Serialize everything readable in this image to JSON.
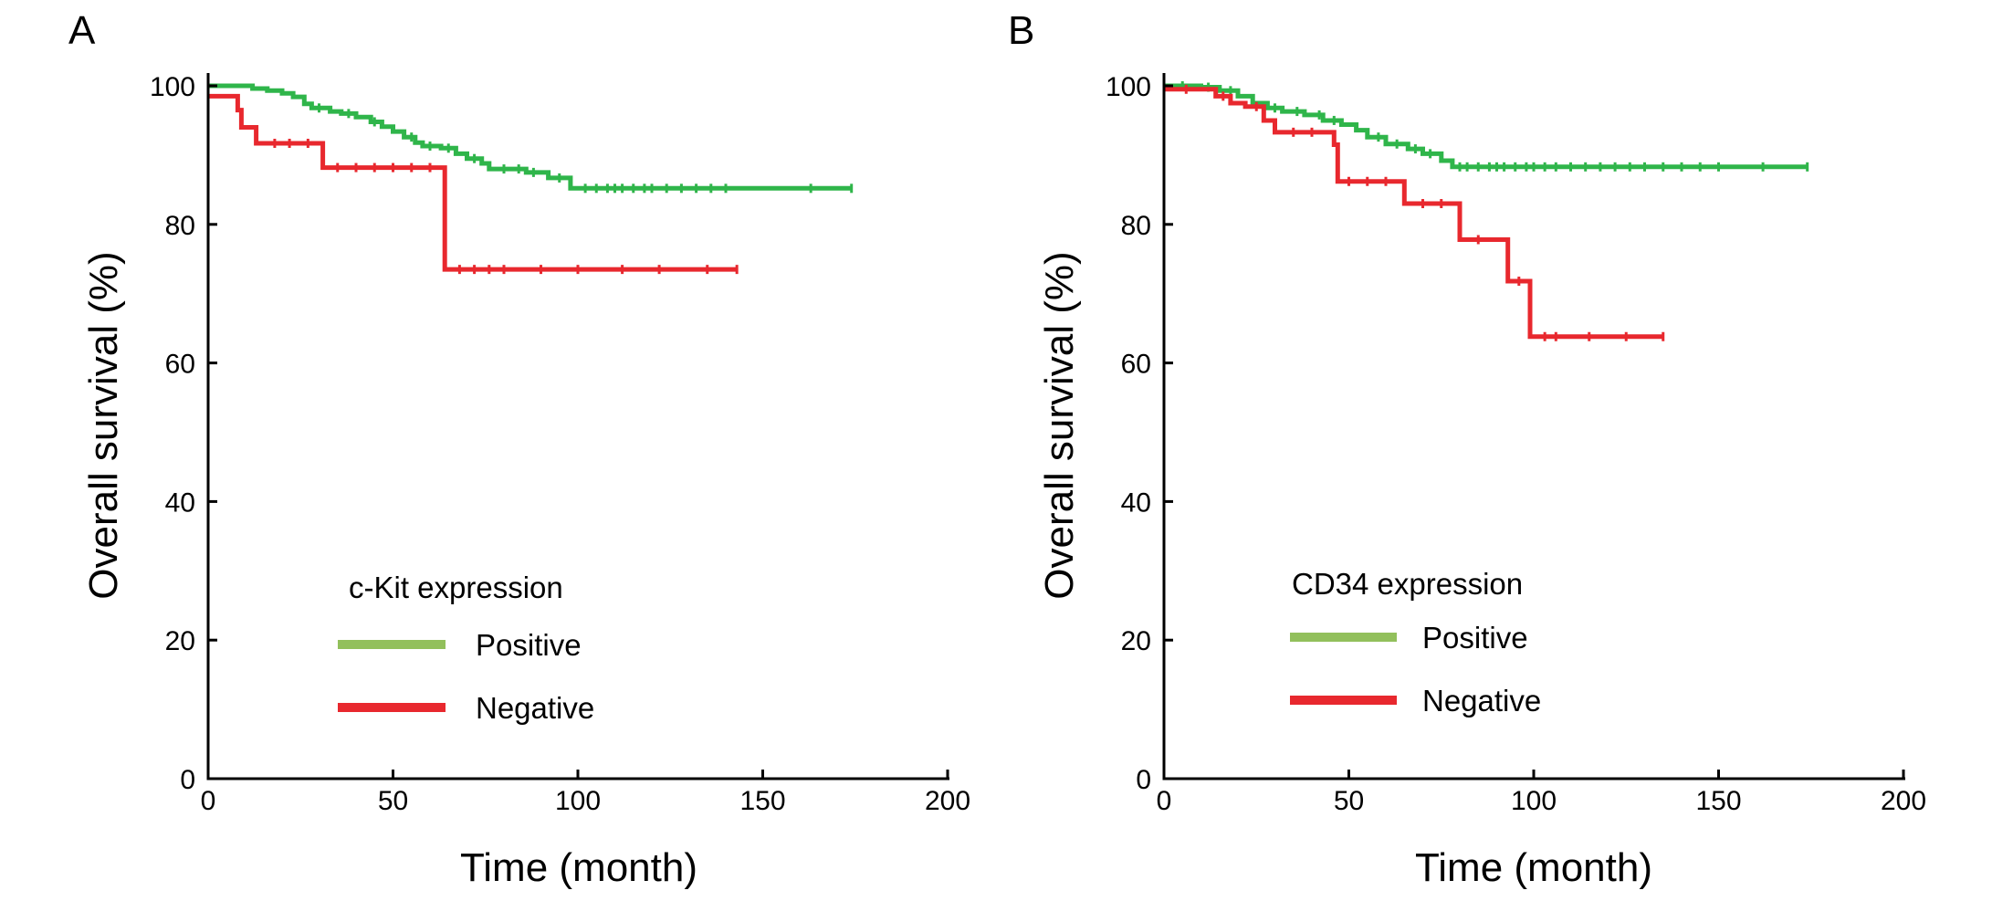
{
  "figure": {
    "panels": [
      "A",
      "B"
    ]
  },
  "chart_data": [
    {
      "panel": "A",
      "type": "line",
      "subtype": "kaplan-meier step",
      "xlabel": "Time (month)",
      "ylabel": "Overall survival (%)",
      "xlim": [
        0,
        200
      ],
      "ylim": [
        0,
        100
      ],
      "xticks": [
        0,
        50,
        100,
        150,
        200
      ],
      "yticks": [
        0,
        20,
        40,
        60,
        80,
        100
      ],
      "grid": false,
      "legend": {
        "title": "c-Kit expression",
        "placement": "lower-left",
        "entries": [
          {
            "label": "Positive",
            "color": "#92c05c"
          },
          {
            "label": "Negative",
            "color": "#e8282e"
          }
        ]
      },
      "series": [
        {
          "name": "Positive",
          "color": "#2fb54a",
          "points": [
            [
              0,
              100
            ],
            [
              10,
              100
            ],
            [
              12,
              99.6
            ],
            [
              16,
              99.3
            ],
            [
              20,
              98.9
            ],
            [
              23,
              98.4
            ],
            [
              26,
              97.4
            ],
            [
              28,
              96.8
            ],
            [
              33,
              96.3
            ],
            [
              36,
              96
            ],
            [
              40,
              95.5
            ],
            [
              44,
              94.8
            ],
            [
              47,
              94.1
            ],
            [
              50,
              93.4
            ],
            [
              53,
              92.6
            ],
            [
              56,
              91.8
            ],
            [
              58,
              91.3
            ],
            [
              63,
              91
            ],
            [
              67,
              90.2
            ],
            [
              70,
              89.5
            ],
            [
              74,
              88.8
            ],
            [
              76,
              88
            ],
            [
              86,
              87.5
            ],
            [
              92,
              86.7
            ],
            [
              98,
              85.2
            ],
            [
              174,
              85.2
            ]
          ],
          "censor_x": [
            30,
            38,
            45,
            55,
            60,
            65,
            72,
            80,
            84,
            88,
            95,
            102,
            105,
            108,
            110,
            112,
            115,
            118,
            120,
            124,
            128,
            132,
            136,
            140,
            163,
            174
          ]
        },
        {
          "name": "Negative",
          "color": "#e8282e",
          "points": [
            [
              0,
              98.5
            ],
            [
              7,
              98.5
            ],
            [
              8,
              96.5
            ],
            [
              9,
              94
            ],
            [
              13,
              91.7
            ],
            [
              24,
              91.7
            ],
            [
              31,
              88.2
            ],
            [
              64,
              88.2
            ],
            [
              64,
              73.5
            ],
            [
              143,
              73.5
            ]
          ],
          "censor_x": [
            18,
            22,
            27,
            35,
            40,
            45,
            50,
            55,
            60,
            68,
            72,
            76,
            80,
            90,
            100,
            112,
            122,
            135,
            143
          ]
        }
      ]
    },
    {
      "panel": "B",
      "type": "line",
      "subtype": "kaplan-meier step",
      "xlabel": "Time (month)",
      "ylabel": "Overall survival (%)",
      "xlim": [
        0,
        200
      ],
      "ylim": [
        0,
        100
      ],
      "xticks": [
        0,
        50,
        100,
        150,
        200
      ],
      "yticks": [
        0,
        20,
        40,
        60,
        80,
        100
      ],
      "grid": false,
      "legend": {
        "title": "CD34 expression",
        "placement": "lower-left",
        "entries": [
          {
            "label": "Positive",
            "color": "#92c05c"
          },
          {
            "label": "Negative",
            "color": "#e8282e"
          }
        ]
      },
      "series": [
        {
          "name": "Positive",
          "color": "#2fb54a",
          "points": [
            [
              0,
              100
            ],
            [
              10,
              99.8
            ],
            [
              15,
              99.3
            ],
            [
              20,
              98.5
            ],
            [
              24,
              97.5
            ],
            [
              28,
              96.8
            ],
            [
              32,
              96.3
            ],
            [
              38,
              95.8
            ],
            [
              43,
              95
            ],
            [
              48,
              94.4
            ],
            [
              52,
              93.6
            ],
            [
              55,
              92.6
            ],
            [
              60,
              91.6
            ],
            [
              66,
              90.9
            ],
            [
              70,
              90.2
            ],
            [
              75,
              89.2
            ],
            [
              78,
              88.3
            ],
            [
              174,
              88.3
            ]
          ],
          "censor_x": [
            5,
            12,
            18,
            30,
            36,
            42,
            46,
            58,
            63,
            68,
            72,
            80,
            82,
            85,
            88,
            90,
            92,
            95,
            98,
            100,
            103,
            106,
            110,
            114,
            118,
            122,
            126,
            130,
            135,
            140,
            145,
            150,
            162,
            174
          ]
        },
        {
          "name": "Negative",
          "color": "#e8282e",
          "points": [
            [
              0,
              99.5
            ],
            [
              12,
              99.5
            ],
            [
              14,
              98.5
            ],
            [
              18,
              97.5
            ],
            [
              22,
              97
            ],
            [
              27,
              95
            ],
            [
              30,
              93.3
            ],
            [
              44,
              93.3
            ],
            [
              46,
              91.5
            ],
            [
              47,
              86.2
            ],
            [
              64,
              86.2
            ],
            [
              65,
              83
            ],
            [
              79,
              83
            ],
            [
              80,
              77.8
            ],
            [
              92,
              77.8
            ],
            [
              93,
              71.8
            ],
            [
              98,
              71.8
            ],
            [
              99,
              63.8
            ],
            [
              135,
              63.8
            ]
          ],
          "censor_x": [
            6,
            16,
            25,
            35,
            40,
            50,
            55,
            60,
            70,
            75,
            85,
            96,
            103,
            106,
            115,
            125,
            135
          ]
        }
      ]
    }
  ]
}
